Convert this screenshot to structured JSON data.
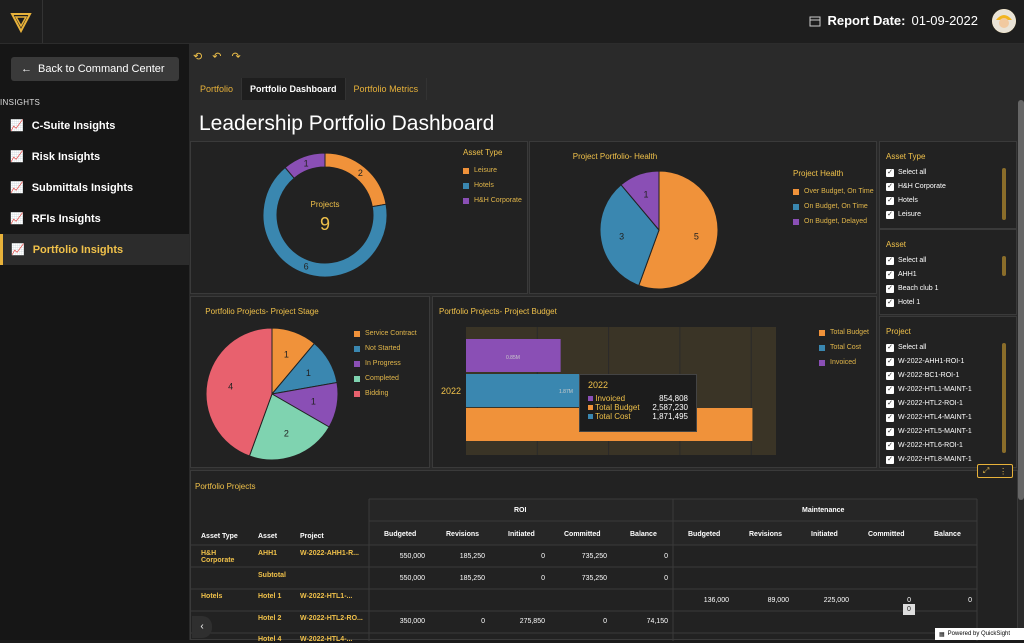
{
  "header": {
    "report_date_label": "Report Date:",
    "report_date": "01-09-2022"
  },
  "sidebar": {
    "back": "Back to Command Center",
    "section": "INSIGHTS",
    "items": [
      {
        "label": "C-Suite Insights"
      },
      {
        "label": "Risk Insights"
      },
      {
        "label": "Submittals Insights"
      },
      {
        "label": "RFIs Insights"
      },
      {
        "label": "Portfolio Insights"
      }
    ]
  },
  "tabs": [
    "Portfolio",
    "Portfolio Dashboard",
    "Portfolio Metrics"
  ],
  "page_title": "Leadership Portfolio Dashboard",
  "donut": {
    "center_label": "Projects",
    "center_value": "9",
    "legend_title": "Asset Type",
    "legend": [
      "Leisure",
      "Hotels",
      "H&H Corporate"
    ],
    "values": [
      2,
      6,
      1
    ],
    "colors": [
      "#f0923a",
      "#3a87b0",
      "#8a4fb5"
    ]
  },
  "health": {
    "title": "Project Portfolio- Health",
    "legend_title": "Project Health",
    "legend": [
      "Over Budget, On Time",
      "On Budget, On Time",
      "On Budget, Delayed"
    ],
    "values": [
      5,
      3,
      1
    ],
    "colors": [
      "#f0923a",
      "#3a87b0",
      "#8a4fb5"
    ]
  },
  "stage": {
    "title": "Portfolio Projects- Project Stage",
    "legend": [
      "Service Contract",
      "Not Started",
      "In Progress",
      "Completed",
      "Bidding"
    ],
    "values": [
      1,
      1,
      1,
      2,
      4
    ],
    "colors": [
      "#f0923a",
      "#3a87b0",
      "#8a4fb5",
      "#7fd3b0",
      "#e8616e"
    ]
  },
  "budget": {
    "title": "Portfolio Projects- Project Budget",
    "category": "2022",
    "legend": [
      "Total Budget",
      "Total Cost",
      "Invoiced"
    ],
    "bar_labels": [
      "0.85M",
      "1.87M"
    ],
    "tooltip": {
      "year": "2022",
      "rows": [
        {
          "label": "Invoiced",
          "value": "854,808"
        },
        {
          "label": "Total Budget",
          "value": "2,587,230"
        },
        {
          "label": "Total Cost",
          "value": "1,871,495"
        }
      ]
    },
    "colors": [
      "#f0923a",
      "#3a87b0",
      "#8a4fb5"
    ]
  },
  "chart_data": [
    {
      "type": "pie",
      "categories": [
        "Leisure",
        "Hotels",
        "H&H Corporate"
      ],
      "values": [
        2,
        6,
        1
      ]
    },
    {
      "type": "pie",
      "title": "Project Portfolio- Health",
      "categories": [
        "Over Budget, On Time",
        "On Budget, On Time",
        "On Budget, Delayed"
      ],
      "values": [
        5,
        3,
        1
      ]
    },
    {
      "type": "pie",
      "title": "Portfolio Projects- Project Stage",
      "categories": [
        "Service Contract",
        "Not Started",
        "In Progress",
        "Completed",
        "Bidding"
      ],
      "values": [
        1,
        1,
        1,
        2,
        4
      ]
    },
    {
      "type": "bar",
      "title": "Portfolio Projects- Project Budget",
      "categories": [
        "2022"
      ],
      "series": [
        {
          "name": "Total Budget",
          "values": [
            2587230
          ]
        },
        {
          "name": "Total Cost",
          "values": [
            1871495
          ]
        },
        {
          "name": "Invoiced",
          "values": [
            854808
          ]
        }
      ]
    }
  ],
  "filters": [
    {
      "title": "Asset Type",
      "items": [
        "Select all",
        "H&H Corporate",
        "Hotels",
        "Leisure"
      ]
    },
    {
      "title": "Asset",
      "items": [
        "Select all",
        "AHH1",
        "Beach club 1",
        "Hotel 1"
      ]
    },
    {
      "title": "Project",
      "items": [
        "Select all",
        "W-2022-AHH1-ROI-1",
        "W-2022-BC1-ROI-1",
        "W-2022-HTL1-MAINT-1",
        "W-2022-HTL2-ROI-1",
        "W-2022-HTL4-MAINT-1",
        "W-2022-HTL5-MAINT-1",
        "W-2022-HTL6-ROI-1",
        "W-2022-HTL8-MAINT-1"
      ]
    }
  ],
  "table": {
    "title": "Portfolio Projects",
    "group_roi": "ROI",
    "group_maint": "Maintenance",
    "cols": [
      "Asset Type",
      "Asset",
      "Project",
      "Budgeted",
      "Revisions",
      "Initiated",
      "Committed",
      "Balance",
      "Budgeted",
      "Revisions",
      "Initiated",
      "Committed",
      "Balance"
    ],
    "r1": [
      "H&H Corporate",
      "AHH1",
      "W-2022-AHH1-R...",
      "550,000",
      "185,250",
      "0",
      "735,250",
      "0"
    ],
    "r2": [
      "Subtotal",
      "550,000",
      "185,250",
      "0",
      "735,250",
      "0"
    ],
    "r3": [
      "Hotels",
      "Hotel 1",
      "W-2022-HTL1-...",
      "136,000",
      "89,000",
      "225,000",
      "0",
      "0"
    ],
    "r4": [
      "Hotel 2",
      "W-2022-HTL2-RO...",
      "350,000",
      "0",
      "275,850",
      "0",
      "74,150"
    ],
    "r5": [
      "Hotel 4",
      "W-2022-HTL4-..."
    ],
    "tooltip_val": "0"
  },
  "powered": "Powered by QuickSight"
}
